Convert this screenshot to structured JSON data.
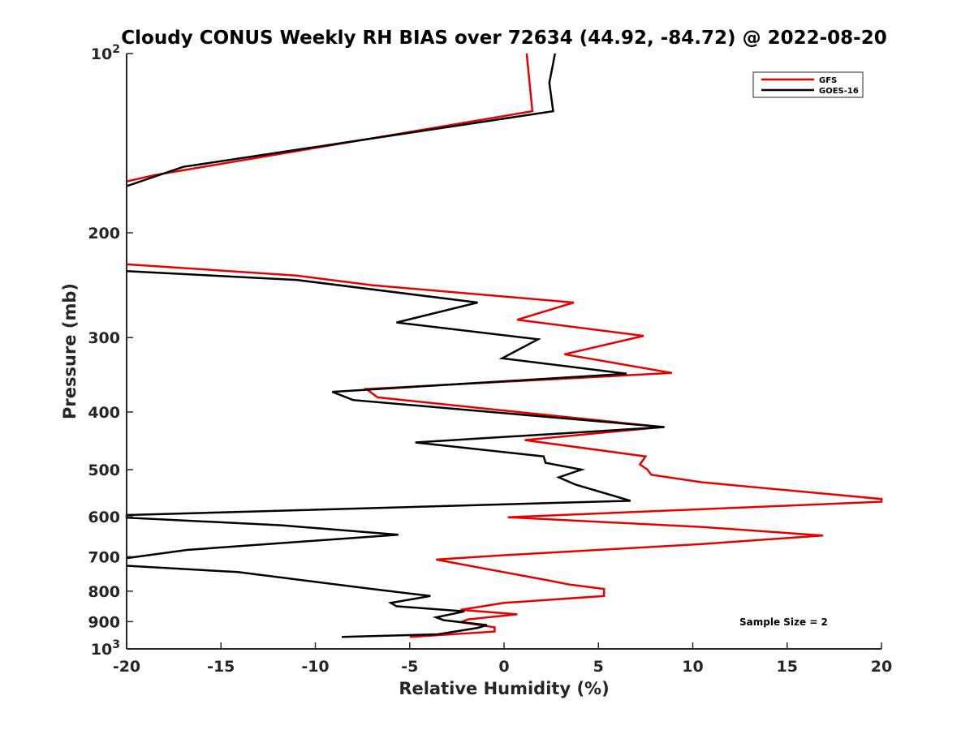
{
  "chart_data": {
    "type": "line",
    "title": "Cloudy CONUS Weekly RH BIAS over 72634 (44.92, -84.72) @ 2022-08-20",
    "xlabel": "Relative Humidity (%)",
    "ylabel": "Pressure (mb)",
    "xlim": [
      -20,
      20
    ],
    "ylim": [
      100,
      1000
    ],
    "yscale": "log",
    "y_reversed": true,
    "xticks": [
      -20,
      -15,
      -10,
      -5,
      0,
      5,
      10,
      15,
      20
    ],
    "xtick_labels": [
      "-20",
      "-15",
      "-10",
      "-5",
      "0",
      "5",
      "10",
      "15",
      "20"
    ],
    "yticks": [
      {
        "value": 100,
        "label": "10",
        "sup": "2"
      },
      {
        "value": 200,
        "label": "200",
        "sup": ""
      },
      {
        "value": 300,
        "label": "300",
        "sup": ""
      },
      {
        "value": 400,
        "label": "400",
        "sup": ""
      },
      {
        "value": 500,
        "label": "500",
        "sup": ""
      },
      {
        "value": 600,
        "label": "600",
        "sup": ""
      },
      {
        "value": 700,
        "label": "700",
        "sup": ""
      },
      {
        "value": 800,
        "label": "800",
        "sup": ""
      },
      {
        "value": 900,
        "label": "900",
        "sup": ""
      },
      {
        "value": 1000,
        "label": "10",
        "sup": "3"
      }
    ],
    "grid": false,
    "legend": "top-right",
    "annotation": "Sample Size = 2",
    "series": [
      {
        "name": "GFS",
        "color": "#e60000",
        "points": [
          [
            1.2,
            100
          ],
          [
            1.5,
            125
          ],
          [
            -18.5,
            160
          ],
          [
            -20,
            164
          ],
          [
            null,
            null
          ],
          [
            -20,
            226
          ],
          [
            -11,
            236
          ],
          [
            -7,
            245
          ],
          [
            3.7,
            262
          ],
          [
            0.7,
            280
          ],
          [
            7.4,
            298
          ],
          [
            3.2,
            320
          ],
          [
            8.9,
            344
          ],
          [
            -7.3,
            366
          ],
          [
            -6.7,
            378
          ],
          [
            8.4,
            424
          ],
          [
            1.1,
            446
          ],
          [
            7.5,
            475
          ],
          [
            7.2,
            490
          ],
          [
            7.6,
            500
          ],
          [
            7.8,
            510
          ],
          [
            10.5,
            525
          ],
          [
            20,
            560
          ],
          [
            20,
            566
          ],
          [
            0.2,
            601
          ],
          [
            10.5,
            624
          ],
          [
            16.9,
            645
          ],
          [
            10.4,
            667
          ],
          [
            0,
            696
          ],
          [
            -3.6,
            708
          ],
          [
            2.3,
            767
          ],
          [
            3.5,
            780
          ],
          [
            5.3,
            793
          ],
          [
            5.3,
            815
          ],
          [
            0,
            837
          ],
          [
            -2.3,
            860
          ],
          [
            0.7,
            875
          ],
          [
            -1.9,
            892
          ],
          [
            -2.3,
            902
          ],
          [
            -0.5,
            920
          ],
          [
            -0.5,
            935
          ],
          [
            -5,
            955
          ]
        ]
      },
      {
        "name": "GOES-16",
        "color": "#000000",
        "points": [
          [
            2.7,
            100
          ],
          [
            2.4,
            112
          ],
          [
            2.6,
            125
          ],
          [
            -17,
            155
          ],
          [
            -20,
            167
          ],
          [
            null,
            null
          ],
          [
            -20,
            232
          ],
          [
            -11,
            240
          ],
          [
            -1.4,
            262
          ],
          [
            -5.7,
            283
          ],
          [
            1.8,
            302
          ],
          [
            -0.1,
            325
          ],
          [
            6.5,
            345
          ],
          [
            -9.1,
            370
          ],
          [
            -8,
            382
          ],
          [
            8.5,
            424
          ],
          [
            -4.7,
            450
          ],
          [
            2.1,
            475
          ],
          [
            2.2,
            487
          ],
          [
            4.1,
            500
          ],
          [
            2.9,
            515
          ],
          [
            3.8,
            530
          ],
          [
            6.7,
            564
          ],
          [
            -20,
            596
          ],
          [
            -20,
            602
          ],
          [
            -11.8,
            620
          ],
          [
            -5.6,
            643
          ],
          [
            -16.8,
            682
          ],
          [
            -20,
            704
          ],
          [
            null,
            null
          ],
          [
            -20,
            725
          ],
          [
            -14.1,
            743
          ],
          [
            -7,
            793
          ],
          [
            -3.9,
            815
          ],
          [
            -6,
            837
          ],
          [
            -5.7,
            848
          ],
          [
            -2.1,
            865
          ],
          [
            -3.6,
            885
          ],
          [
            -3.2,
            895
          ],
          [
            -0.9,
            912
          ],
          [
            -1.4,
            922
          ],
          [
            -3.5,
            945
          ],
          [
            -8.6,
            955
          ]
        ]
      }
    ]
  }
}
